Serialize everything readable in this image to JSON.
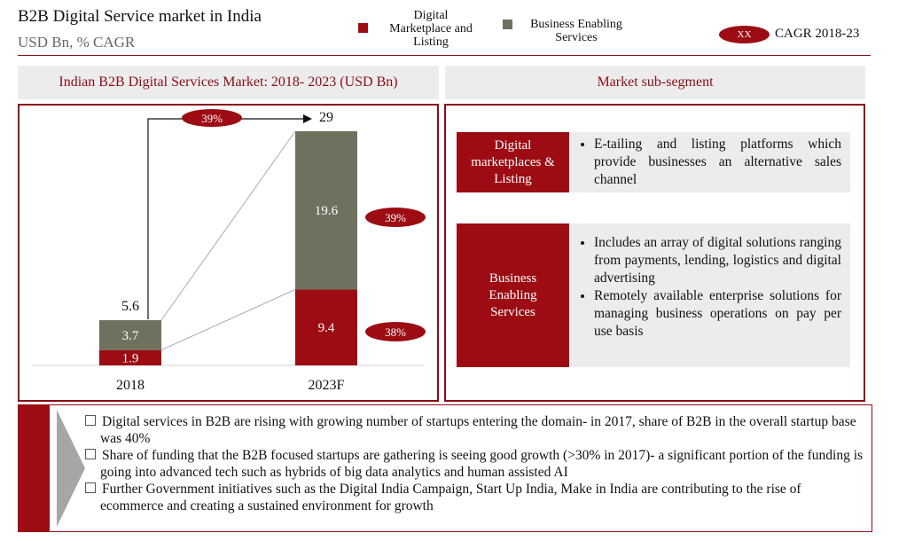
{
  "header": {
    "title": "B2B Digital Service market in India",
    "subtitle": "USD Bn, % CAGR",
    "legend": [
      {
        "label_lines": [
          "Digital",
          "Marketplace and",
          "Listing"
        ],
        "color": "#9d0c13"
      },
      {
        "label_lines": [
          "Business Enabling",
          "Services"
        ],
        "color": "#6e715e"
      }
    ],
    "cagr_badge": "XX",
    "cagr_label": "CAGR 2018-23"
  },
  "left_panel": {
    "title": "Indian B2B Digital Services Market: 2018- 2023 (USD Bn)"
  },
  "right_panel": {
    "title": "Market sub-segment",
    "segments": [
      {
        "label": "Digital marketplaces & Listing",
        "bullets": [
          "E-tailing and listing platforms which provide businesses an alternative sales channel"
        ]
      },
      {
        "label": "Business Enabling Services",
        "bullets": [
          "Includes an array of digital solutions ranging from payments, lending, logistics and digital advertising",
          "Remotely available enterprise solutions for managing business operations on pay per use basis"
        ]
      }
    ]
  },
  "chart_data": {
    "type": "bar",
    "stacked": true,
    "categories": [
      "2018",
      "2023F"
    ],
    "series": [
      {
        "name": "Digital Marketplace and Listing",
        "values": [
          1.9,
          9.4
        ],
        "color": "#9d0c13",
        "cagr": "38%"
      },
      {
        "name": "Business Enabling Services",
        "values": [
          3.7,
          19.6
        ],
        "color": "#6e715e",
        "cagr": "39%"
      }
    ],
    "totals": [
      5.6,
      29
    ],
    "total_cagr": "39%",
    "ylim": [
      0,
      29
    ],
    "grid": false,
    "legend": "top"
  },
  "takeaways": [
    "Digital services in B2B are rising with growing number of startups entering the domain- in 2017, share of B2B in the overall startup base was 40%",
    "Share of funding that the B2B focused startups are gathering is seeing good growth (>30% in 2017)- a significant portion of the funding is going into advanced tech such as hybrids of big data analytics and human assisted AI",
    "Further Government initiatives such as the Digital India Campaign, Start Up India, Make in India are contributing to the rise of ecommerce and creating a sustained environment for  growth"
  ]
}
